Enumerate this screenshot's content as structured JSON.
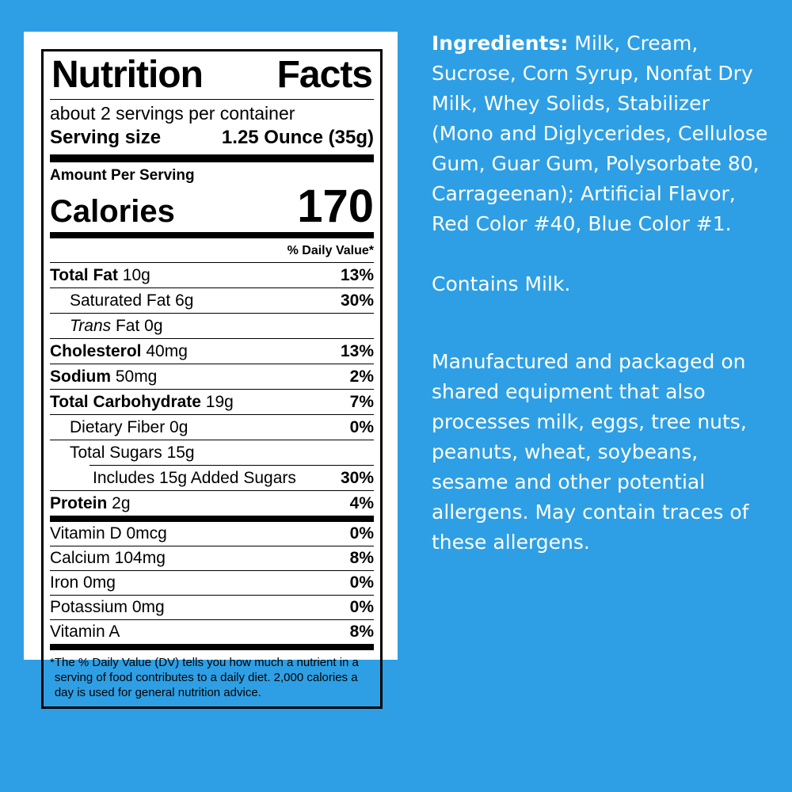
{
  "page": {
    "background_color": "#2E9FE4",
    "card_color": "#FFFFFF",
    "panel_text_color": "#FFFFFF"
  },
  "nutrition_label": {
    "title_words": [
      "Nutrition",
      "Facts"
    ],
    "servings_per_container": "about 2 servings per container",
    "serving_size": {
      "label": "Serving size",
      "value": "1.25 Ounce (35g)"
    },
    "amount_per_serving": "Amount Per Serving",
    "calories": {
      "label": "Calories",
      "value": "170"
    },
    "daily_value_header": "% Daily Value*",
    "nutrient_rows": [
      {
        "bold": "Total Fat",
        "text": " 10g",
        "percent": "13%"
      },
      {
        "text": "Saturated Fat 6g",
        "percent": "30%"
      },
      {
        "italic": "Trans",
        "text": " Fat 0g",
        "percent": ""
      },
      {
        "bold": "Cholesterol",
        "text": " 40mg",
        "percent": "13%"
      },
      {
        "bold": "Sodium",
        "text": " 50mg",
        "percent": "2%"
      },
      {
        "bold": "Total Carbohydrate",
        "text": " 19g",
        "percent": "7%"
      },
      {
        "text": "Dietary Fiber 0g",
        "percent": "0%"
      },
      {
        "text": "Total Sugars 15g",
        "percent": ""
      },
      {
        "text": "Includes 15g Added Sugars",
        "percent": "30%"
      },
      {
        "bold": "Protein",
        "text": " 2g",
        "percent": "4%"
      }
    ],
    "vitamin_rows": [
      {
        "text": "Vitamin D 0mcg",
        "percent": "0%"
      },
      {
        "text": "Calcium 104mg",
        "percent": "8%"
      },
      {
        "text": "Iron 0mg",
        "percent": "0%"
      },
      {
        "text": "Potassium 0mg",
        "percent": "0%"
      },
      {
        "text": "Vitamin A",
        "percent": "8%"
      }
    ],
    "footnote_marker": "*",
    "footnote": "The % Daily Value (DV) tells you how much a nutrient in a serving of food contributes to a daily diet. 2,000 calories a day is used for general nutrition advice."
  },
  "ingredients_panel": {
    "ingredients_label": "Ingredients:",
    "ingredients_text": " Milk, Cream, Sucrose, Corn Syrup, Nonfat Dry Milk, Whey Solids, Stabilizer (Mono and Diglycerides, Cellulose Gum, Guar Gum, Polysorbate 80, Carrageenan); Artificial Flavor, Red Color #40, Blue Color #1.",
    "contains_statement": "Contains Milk.",
    "allergen_statement": "Manufactured and packaged on shared equipment that also processes milk, eggs, tree nuts, peanuts, wheat, soybeans, sesame and other potential allergens. May contain traces of these allergens."
  }
}
